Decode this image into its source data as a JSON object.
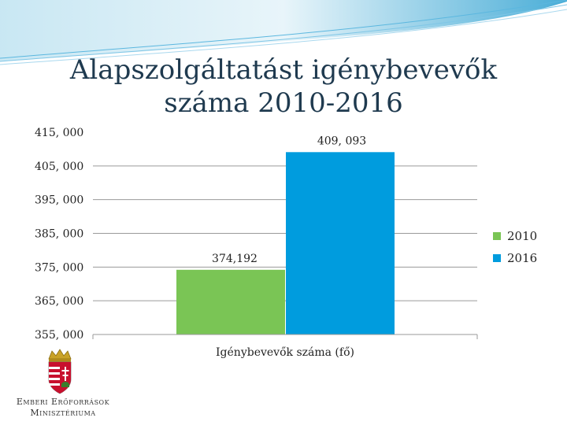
{
  "slide": {
    "title_line1": "Alapszolgáltatást igénybevevők",
    "title_line2": "száma 2010-2016"
  },
  "logo": {
    "line1": "Emberi Erőforrások",
    "line2": "Minisztériuma"
  },
  "colors": {
    "series_2010": "#7ac555",
    "series_2016": "#009cde",
    "title": "#1f3a4f"
  },
  "chart_data": {
    "type": "bar",
    "categories": [
      "Igénybevevők száma (fő)"
    ],
    "series": [
      {
        "name": "2010",
        "values": [
          374192
        ],
        "label": "374,192"
      },
      {
        "name": "2016",
        "values": [
          409093
        ],
        "label": "409, 093"
      }
    ],
    "ylim": [
      355000,
      415000
    ],
    "yticks": [
      {
        "value": 415000,
        "label": "415, 000"
      },
      {
        "value": 405000,
        "label": "405, 000"
      },
      {
        "value": 395000,
        "label": "395, 000"
      },
      {
        "value": 385000,
        "label": "385, 000"
      },
      {
        "value": 375000,
        "label": "375, 000"
      },
      {
        "value": 365000,
        "label": "365, 000"
      },
      {
        "value": 355000,
        "label": "355, 000"
      }
    ],
    "grid": true,
    "legend": "right"
  }
}
